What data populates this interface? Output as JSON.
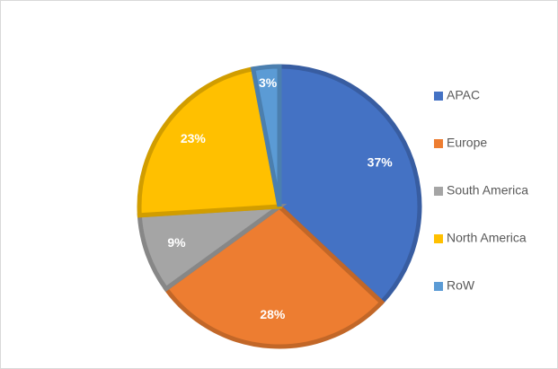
{
  "chart_data": {
    "type": "pie",
    "categories": [
      "APAC",
      "Europe",
      "South America",
      "North America",
      "RoW"
    ],
    "values": [
      37,
      28,
      9,
      23,
      3
    ],
    "value_labels": [
      "37%",
      "28%",
      "9%",
      "23%",
      "3%"
    ],
    "colors": [
      "#4472c4",
      "#ed7d31",
      "#a5a5a5",
      "#ffc000",
      "#5b9bd5"
    ],
    "legend": "right"
  }
}
